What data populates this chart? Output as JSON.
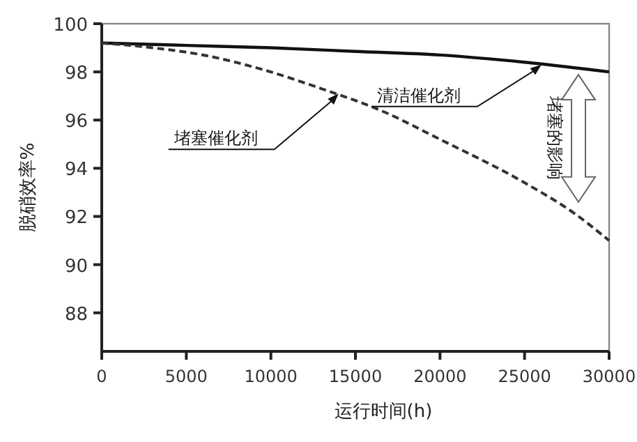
{
  "chart_data": {
    "type": "line",
    "xlabel": "运行时间(h)",
    "ylabel": "脱硝效率%",
    "xlim": [
      0,
      30000
    ],
    "ylim": [
      86.4,
      100
    ],
    "xticks": [
      0,
      5000,
      10000,
      15000,
      20000,
      25000,
      30000
    ],
    "yticks": [
      88,
      90,
      92,
      94,
      96,
      98,
      100
    ],
    "grid": false,
    "series": [
      {
        "color": "#111111",
        "line_style": "solid",
        "x": [
          0,
          5000,
          10000,
          15000,
          20000,
          25000,
          30000
        ],
        "values": [
          99.2,
          99.1,
          99.0,
          98.85,
          98.7,
          98.4,
          98.0
        ]
      },
      {
        "color": "#333333",
        "line_style": "dashed",
        "x": [
          0,
          3000,
          6000,
          9500,
          13000,
          16500,
          20000,
          25000,
          28000,
          30000
        ],
        "values": [
          99.2,
          99.0,
          98.7,
          98.1,
          97.3,
          96.4,
          95.2,
          93.4,
          92.1,
          91.0
        ]
      }
    ],
    "annotations": [
      {
        "text": "清洁催化剂",
        "x": 26000,
        "y": 98.3
      },
      {
        "text": "堵塞催化剂",
        "x": 14000,
        "y": 97.1
      },
      "堵塞的影响"
    ]
  }
}
